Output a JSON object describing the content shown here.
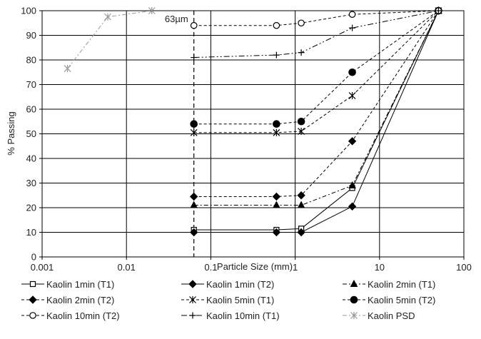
{
  "chart_data": {
    "type": "line",
    "xscale": "log",
    "xlim": [
      0.001,
      100
    ],
    "ylim": [
      0,
      100
    ],
    "xlabel": "Particle Size (mm)",
    "ylabel": "% Passing",
    "xticks": [
      0.001,
      0.01,
      0.1,
      1,
      10,
      100
    ],
    "xtick_labels": [
      "0.001",
      "0.01",
      "0.1",
      "1",
      "10",
      "100"
    ],
    "yticks": [
      0,
      10,
      20,
      30,
      40,
      50,
      60,
      70,
      80,
      90,
      100
    ],
    "ytick_labels": [
      "0",
      "10",
      "20",
      "30",
      "40",
      "50",
      "60",
      "70",
      "80",
      "90",
      "100"
    ],
    "grid": true,
    "legend_position": "bottom",
    "reference_line": {
      "x": 0.063,
      "label": "63µm"
    },
    "series": [
      {
        "name": "Kaolin 1min (T1)",
        "marker": "square-open",
        "dash": "solid",
        "x": [
          0.063,
          0.6,
          1.18,
          4.75,
          50
        ],
        "y": [
          11,
          11,
          11.5,
          28,
          100
        ]
      },
      {
        "name": "Kaolin 1min (T2)",
        "marker": "diamond",
        "dash": "solid",
        "x": [
          0.063,
          0.6,
          1.18,
          4.75,
          50
        ],
        "y": [
          10,
          10,
          10,
          20.5,
          100
        ]
      },
      {
        "name": "Kaolin 2min (T1)",
        "marker": "triangle",
        "dash": "dashdot",
        "x": [
          0.063,
          0.6,
          1.18,
          4.75,
          50
        ],
        "y": [
          21,
          21,
          21,
          29,
          100
        ]
      },
      {
        "name": "Kaolin 2min (T2)",
        "marker": "diamond",
        "dash": "dash",
        "x": [
          0.063,
          0.6,
          1.18,
          4.75,
          50
        ],
        "y": [
          24.5,
          24.5,
          25,
          47,
          100
        ]
      },
      {
        "name": "Kaolin 5min (T1)",
        "marker": "asterisk",
        "dash": "dash",
        "x": [
          0.063,
          0.6,
          1.18,
          4.75,
          50
        ],
        "y": [
          50.5,
          50.5,
          51,
          65.5,
          100
        ]
      },
      {
        "name": "Kaolin 5min (T2)",
        "marker": "circle",
        "dash": "dash",
        "x": [
          0.063,
          0.6,
          1.18,
          4.75,
          50
        ],
        "y": [
          54,
          54,
          55,
          75,
          100
        ]
      },
      {
        "name": "Kaolin 10min (T2)",
        "marker": "circle-open",
        "dash": "dash",
        "x": [
          0.063,
          0.6,
          1.18,
          4.75,
          50
        ],
        "y": [
          94,
          94,
          95,
          98.5,
          100
        ]
      },
      {
        "name": "Kaolin 10min (T1)",
        "marker": "plus",
        "dash": "dashdotdot",
        "x": [
          0.063,
          0.6,
          1.18,
          4.75,
          50
        ],
        "y": [
          81,
          82,
          83,
          93,
          100
        ]
      },
      {
        "name": "Kaolin PSD",
        "marker": "asterisk",
        "dash": "dashdot",
        "color": "#999999",
        "x": [
          0.002,
          0.006,
          0.02
        ],
        "y": [
          76.5,
          97.5,
          100
        ]
      }
    ]
  }
}
